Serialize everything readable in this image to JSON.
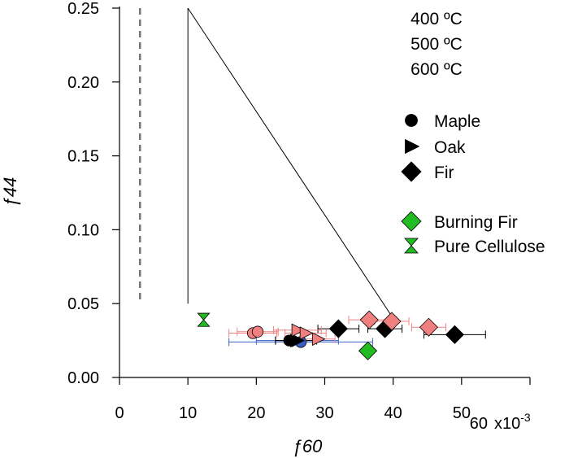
{
  "chart_data": {
    "type": "scatter",
    "xlabel": "ƒ60",
    "ylabel": "ƒ44",
    "x_multiplier_label": "x10",
    "x_multiplier_exponent": "-3",
    "xlim": [
      0,
      60
    ],
    "ylim": [
      0,
      0.25
    ],
    "x_ticks": [
      0,
      10,
      20,
      30,
      40,
      50,
      60
    ],
    "y_ticks": [
      0.0,
      0.05,
      0.1,
      0.15,
      0.2,
      0.25
    ],
    "x_tick_labels": [
      "0",
      "10",
      "20",
      "30",
      "40",
      "50",
      "60"
    ],
    "y_tick_labels": [
      "0.00",
      "0.05",
      "0.10",
      "0.15",
      "0.20",
      "0.25"
    ],
    "grid": false,
    "legend_temperatures": [
      {
        "label": "400 ºC",
        "color": "#1a8ad4"
      },
      {
        "label": "500 ºC",
        "color": "#000000"
      },
      {
        "label": "600 ºC",
        "color": "#f08080"
      }
    ],
    "legend_markers": [
      {
        "label": "Maple",
        "shape": "circle",
        "color": "#000000"
      },
      {
        "label": "Oak",
        "shape": "triangle",
        "color": "#000000"
      },
      {
        "label": " Fir",
        "shape": "diamond",
        "color": "#000000"
      }
    ],
    "legend_extra": [
      {
        "label": "Burning Fir",
        "shape": "diamond",
        "color": "#22bb22"
      },
      {
        "label": "Pure Cellulose",
        "shape": "hourglass",
        "color": "#22bb22"
      }
    ],
    "reference_lines": {
      "dashed_vertical": {
        "x": 3,
        "y_range": [
          0.05,
          0.25
        ]
      },
      "triangle_left_vertical": {
        "x": 10,
        "y_range": [
          0.05,
          0.25
        ]
      },
      "triangle_diagonal": {
        "from": [
          10,
          0.25
        ],
        "to": [
          40,
          0.04
        ]
      }
    },
    "series": [
      {
        "name": "400 ºC",
        "color": "#3a5fc8",
        "points": [
          {
            "shape": "circle",
            "x": 26.5,
            "y": 0.024,
            "xerr": 10.5
          },
          {
            "shape": "triangle",
            "x": 26.0,
            "y": 0.025,
            "xerr": 6.0
          }
        ]
      },
      {
        "name": "500 ºC",
        "color": "#000000",
        "points": [
          {
            "shape": "circle",
            "x": 24.8,
            "y": 0.025,
            "xerr": 2.0
          },
          {
            "shape": "triangle",
            "x": 25.8,
            "y": 0.025,
            "xerr": 3.0
          },
          {
            "shape": "diamond",
            "x": 32.0,
            "y": 0.033,
            "xerr": 3.0
          },
          {
            "shape": "diamond",
            "x": 38.8,
            "y": 0.033,
            "xerr": 2.5
          },
          {
            "shape": "diamond",
            "x": 49.0,
            "y": 0.029,
            "xerr": 4.5
          }
        ]
      },
      {
        "name": "600 ºC",
        "color": "#f08080",
        "points": [
          {
            "shape": "circle",
            "x": 19.5,
            "y": 0.03,
            "xerr": 3.5
          },
          {
            "shape": "circle",
            "x": 20.2,
            "y": 0.031,
            "xerr": 3.0
          },
          {
            "shape": "triangle",
            "x": 26.0,
            "y": 0.032,
            "xerr": 3.5
          },
          {
            "shape": "triangle",
            "x": 27.2,
            "y": 0.03,
            "xerr": 3.0
          },
          {
            "shape": "triangle",
            "x": 29.0,
            "y": 0.026,
            "xerr": 2.5
          },
          {
            "shape": "diamond",
            "x": 36.5,
            "y": 0.039,
            "xerr": 3.0
          },
          {
            "shape": "diamond",
            "x": 39.8,
            "y": 0.038,
            "xerr": 2.5
          },
          {
            "shape": "diamond",
            "x": 45.2,
            "y": 0.034,
            "xerr": 2.5
          }
        ]
      },
      {
        "name": "Burning Fir",
        "color": "#22bb22",
        "points": [
          {
            "shape": "diamond",
            "x": 36.3,
            "y": 0.018,
            "xerr": 0
          }
        ]
      },
      {
        "name": "Pure Cellulose",
        "color": "#22bb22",
        "points": [
          {
            "shape": "hourglass",
            "x": 12.3,
            "y": 0.039,
            "xerr": 0
          }
        ]
      }
    ]
  }
}
